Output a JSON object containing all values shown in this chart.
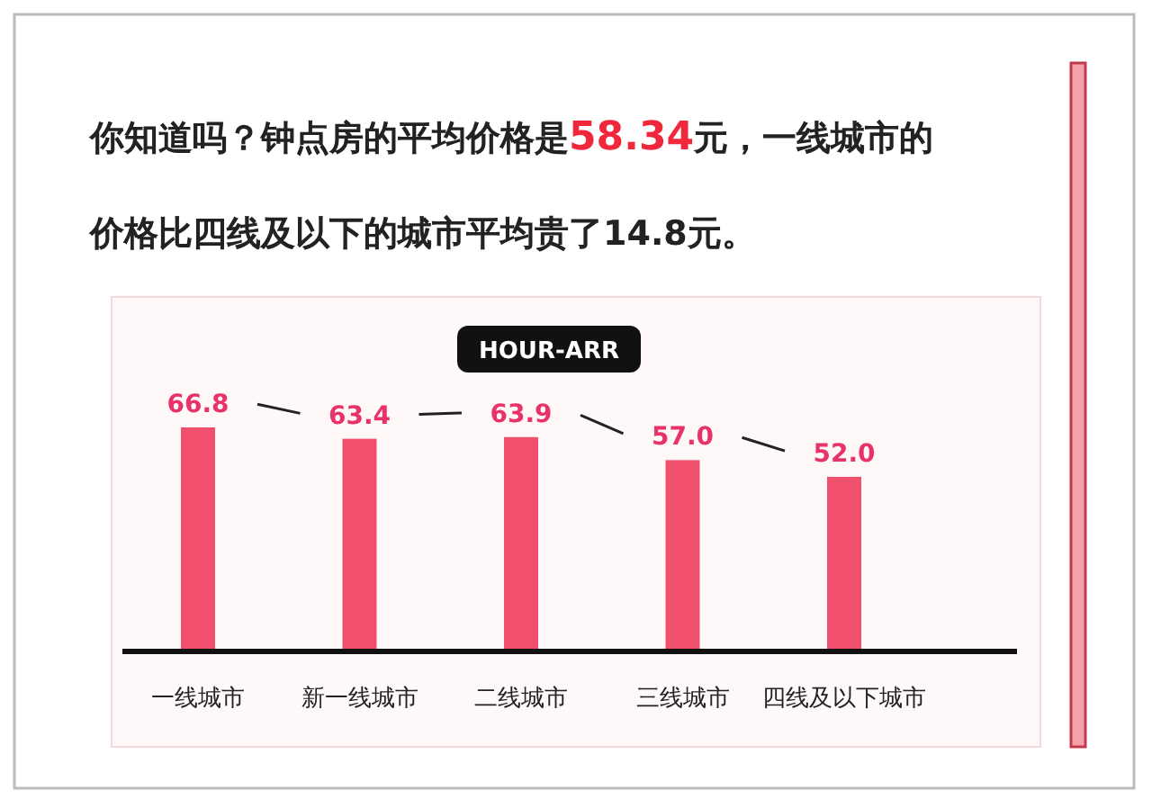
{
  "chart_data": {
    "type": "bar",
    "title": "你知道吗？钟点房的平均价格是**58.34**元，一线城市的价格比四线及以下的城市平均贵了14.8元。",
    "subtitle": "HOUR-ARR",
    "categories": [
      "一线城市",
      "新一线城市",
      "二线城市",
      "三线城市",
      "四线及以下城市"
    ],
    "values": [
      66.8,
      63.4,
      63.9,
      57.0,
      52.0
    ],
    "color": "#f0506e",
    "value_labels": [
      "66.8",
      "63.4",
      "63.9",
      "57.0",
      "52.0"
    ]
  }
}
